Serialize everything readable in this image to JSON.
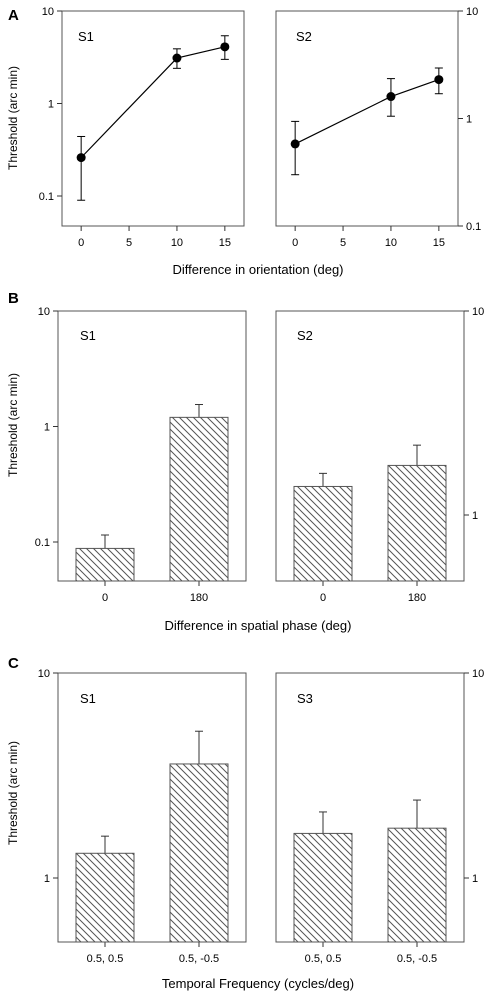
{
  "panels": [
    {
      "letter": "A",
      "xlabel": "Difference in orientation (deg)",
      "ylabel": "Threshold (arc min)",
      "subplots": [
        {
          "subject": "S1",
          "left_axis": true,
          "right_axis": false
        },
        {
          "subject": "S2",
          "left_axis": false,
          "right_axis": true
        }
      ]
    },
    {
      "letter": "B",
      "xlabel": "Difference in spatial phase (deg)",
      "ylabel": "Threshold (arc min)",
      "subplots": [
        {
          "subject": "S1",
          "left_axis": true,
          "right_axis": false
        },
        {
          "subject": "S2",
          "left_axis": false,
          "right_axis": true
        }
      ]
    },
    {
      "letter": "C",
      "xlabel": "Temporal Frequency (cycles/deg)",
      "ylabel": "Threshold (arc min)",
      "subplots": [
        {
          "subject": "S1",
          "left_axis": true,
          "right_axis": false
        },
        {
          "subject": "S3",
          "left_axis": false,
          "right_axis": true
        }
      ]
    }
  ],
  "colors": {
    "frame": "#555555",
    "marker": "#000000",
    "hatch": "#555555",
    "background": "#ffffff"
  },
  "chart_data": [
    {
      "type": "line",
      "panel": "A",
      "subject": "S1",
      "x": [
        0,
        10,
        15
      ],
      "y": [
        0.26,
        3.1,
        4.1
      ],
      "err_low": [
        0.09,
        2.4,
        3.0
      ],
      "err_high": [
        0.44,
        3.9,
        5.4
      ],
      "xticks": [
        0,
        5,
        10,
        15
      ],
      "xlim": [
        -2,
        17
      ],
      "ylim": [
        0.05,
        10
      ],
      "yscale": "log",
      "ytick_labels": [
        "0.1",
        "1",
        "10"
      ],
      "xlabel": "Difference in orientation (deg)",
      "ylabel": "Threshold (arc min)"
    },
    {
      "type": "line",
      "panel": "A",
      "subject": "S2",
      "x": [
        0,
        10,
        15
      ],
      "y": [
        0.58,
        1.6,
        2.3
      ],
      "err_low": [
        0.3,
        1.05,
        1.7
      ],
      "err_high": [
        0.94,
        2.35,
        2.95
      ],
      "xticks": [
        0,
        5,
        10,
        15
      ],
      "xlim": [
        -2,
        17
      ],
      "ylim": [
        0.1,
        10
      ],
      "yscale": "log",
      "ytick_labels": [
        "0.1",
        "1",
        "10"
      ],
      "xlabel": "Difference in orientation (deg)"
    },
    {
      "type": "bar",
      "panel": "B",
      "subject": "S1",
      "categories": [
        "0",
        "180"
      ],
      "values": [
        0.088,
        1.2
      ],
      "err_high": [
        0.115,
        1.55
      ],
      "ylim": [
        0.05,
        10
      ],
      "yscale": "log",
      "ytick_labels": [
        "0.1",
        "1",
        "10"
      ],
      "xlabel": "Difference in spatial phase (deg)",
      "ylabel": "Threshold (arc min)"
    },
    {
      "type": "bar",
      "panel": "B",
      "subject": "S2",
      "categories": [
        "0",
        "180"
      ],
      "values": [
        1.38,
        1.75
      ],
      "err_high": [
        1.6,
        2.2
      ],
      "ylim": [
        0.6,
        10
      ],
      "yscale": "log",
      "ytick_labels": [
        "1",
        "10"
      ],
      "xlabel": "Difference in spatial phase (deg)"
    },
    {
      "type": "bar",
      "panel": "C",
      "subject": "S1",
      "categories": [
        "0.5, 0.5",
        "0.5, -0.5"
      ],
      "values": [
        1.32,
        3.6
      ],
      "err_high": [
        1.6,
        5.2
      ],
      "ylim": [
        0.5,
        10
      ],
      "yscale": "log",
      "ytick_labels": [
        "1",
        "10"
      ],
      "xlabel": "Temporal Frequency (cycles/deg)",
      "ylabel": "Threshold (arc min)"
    },
    {
      "type": "bar",
      "panel": "C",
      "subject": "S3",
      "categories": [
        "0.5, 0.5",
        "0.5, -0.5"
      ],
      "values": [
        1.65,
        1.75
      ],
      "err_high": [
        2.1,
        2.4
      ],
      "ylim": [
        0.5,
        10
      ],
      "yscale": "log",
      "ytick_labels": [
        "1",
        "10"
      ],
      "xlabel": "Temporal Frequency (cycles/deg)"
    }
  ]
}
